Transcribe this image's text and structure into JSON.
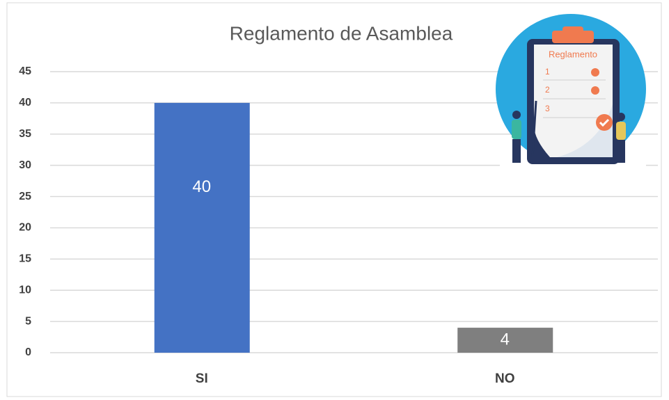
{
  "chart_data": {
    "type": "bar",
    "title": "Reglamento de Asamblea",
    "categories": [
      "SI",
      "NO"
    ],
    "values": [
      40,
      4
    ],
    "colors": [
      "#4472c4",
      "#7f7f7f"
    ],
    "ylim": [
      0,
      45
    ],
    "yticks": [
      0,
      5,
      10,
      15,
      20,
      25,
      30,
      35,
      40,
      45
    ],
    "grid": true,
    "illustration": {
      "title": "Reglamento",
      "items": [
        "1",
        "2",
        "3"
      ]
    }
  }
}
